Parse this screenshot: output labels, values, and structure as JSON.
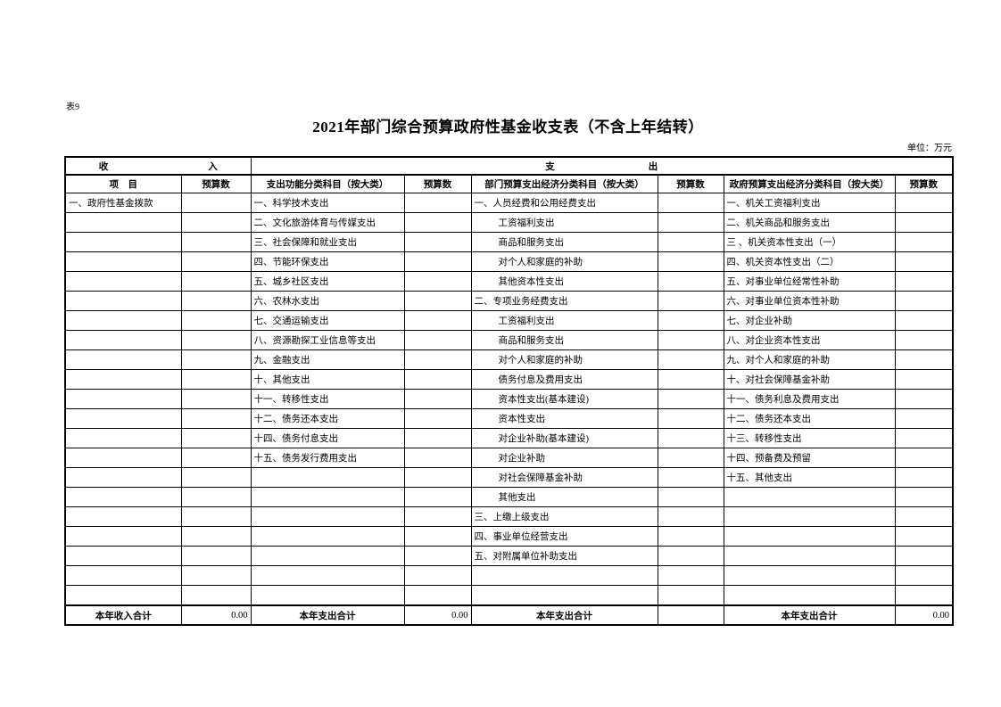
{
  "page": {
    "sheet_label": "表9",
    "title": "2021年部门综合预算政府性基金收支表（不含上年结转）",
    "unit_note": "单位：万元"
  },
  "table": {
    "section_headers": {
      "income": [
        "收",
        "入"
      ],
      "expenditure": [
        "支",
        "出"
      ]
    },
    "columns": [
      "项　目",
      "预算数",
      "支出功能分类科目（按大类）",
      "预算数",
      "部门预算支出经济分类科目（按大类）",
      "预算数",
      "政府预算支出经济分类科目（按大类）",
      "预算数"
    ],
    "rows": [
      {
        "item": "一、政府性基金拨款",
        "func": "一、科学技术支出",
        "dept": "一、人员经费和公用经费支出",
        "dept_indent": false,
        "gov": "一、机关工资福利支出"
      },
      {
        "func": "二、文化旅游体育与传媒支出",
        "dept": "工资福利支出",
        "dept_indent": true,
        "gov": "二、机关商品和服务支出"
      },
      {
        "func": "三、社会保障和就业支出",
        "dept": "商品和服务支出",
        "dept_indent": true,
        "gov": "三 、机关资本性支出（一）"
      },
      {
        "func": "四、节能环保支出",
        "dept": "对个人和家庭的补助",
        "dept_indent": true,
        "gov": "四、机关资本性支出（二）"
      },
      {
        "func": "五、城乡社区支出",
        "dept": "其他资本性支出",
        "dept_indent": true,
        "gov": "五、对事业单位经常性补助"
      },
      {
        "func": "六、农林水支出",
        "dept": "二、专项业务经费支出",
        "dept_indent": false,
        "gov": "六、对事业单位资本性补助"
      },
      {
        "func": "七、交通运输支出",
        "dept": "工资福利支出",
        "dept_indent": true,
        "gov": "七、对企业补助"
      },
      {
        "func": "八、资源勘探工业信息等支出",
        "dept": "商品和服务支出",
        "dept_indent": true,
        "gov": "八、对企业资本性支出"
      },
      {
        "func": "九、金融支出",
        "dept": "对个人和家庭的补助",
        "dept_indent": true,
        "gov": "九、对个人和家庭的补助"
      },
      {
        "func": "十、其他支出",
        "dept": "债务付息及费用支出",
        "dept_indent": true,
        "gov": "十、对社会保障基金补助"
      },
      {
        "func": "十一、转移性支出",
        "dept": "资本性支出(基本建设)",
        "dept_indent": true,
        "gov": "十一、债务利息及费用支出"
      },
      {
        "func": "十二、债务还本支出",
        "dept": "资本性支出",
        "dept_indent": true,
        "gov": "十二、债务还本支出"
      },
      {
        "func": "十四、债务付息支出",
        "dept": "对企业补助(基本建设)",
        "dept_indent": true,
        "gov": "十三、转移性支出"
      },
      {
        "func": "十五、债务发行费用支出",
        "dept": "对企业补助",
        "dept_indent": true,
        "gov": "十四、预备费及预留"
      },
      {
        "dept": "对社会保障基金补助",
        "dept_indent": true,
        "gov": "十五、其他支出"
      },
      {
        "dept": "其他支出",
        "dept_indent": true
      },
      {
        "dept": "三、上缴上级支出",
        "dept_indent": false
      },
      {
        "dept": "四、事业单位经营支出",
        "dept_indent": false
      },
      {
        "dept": "五、对附属单位补助支出",
        "dept_indent": false
      },
      {},
      {}
    ],
    "totals": {
      "income_label": "本年收入合计",
      "income_value": "0.00",
      "func_label": "本年支出合计",
      "func_value": "0.00",
      "dept_label": "本年支出合计",
      "dept_value": "",
      "gov_label": "本年支出合计",
      "gov_value": "0.00"
    }
  }
}
